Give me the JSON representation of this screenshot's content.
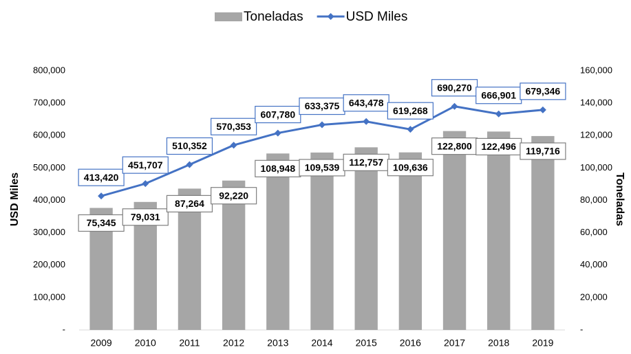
{
  "chart_data": {
    "type": "bar_line",
    "categories": [
      "2009",
      "2010",
      "2011",
      "2012",
      "2013",
      "2014",
      "2015",
      "2016",
      "2017",
      "2018",
      "2019"
    ],
    "series": [
      {
        "name": "Toneladas",
        "type": "bar",
        "axis": "y2",
        "color": "#a6a6a6",
        "values": [
          75345,
          79031,
          87264,
          92220,
          108948,
          109539,
          112757,
          109636,
          122800,
          122496,
          119716
        ],
        "value_labels": [
          "75,345",
          "79,031",
          "87,264",
          "92,220",
          "108,948",
          "109,539",
          "112,757",
          "109,636",
          "122,800",
          "122,496",
          "119,716"
        ]
      },
      {
        "name": "USD Miles",
        "type": "line",
        "axis": "y",
        "color": "#4472c4",
        "values": [
          413420,
          451707,
          510352,
          570353,
          607780,
          633375,
          643478,
          619268,
          690270,
          666901,
          679346
        ],
        "value_labels": [
          "413,420",
          "451,707",
          "510,352",
          "570,353",
          "607,780",
          "633,375",
          "643,478",
          "619,268",
          "690,270",
          "666,901",
          "679,346"
        ]
      }
    ],
    "ylabel": "USD Miles",
    "y2label": "Toneladas",
    "ylim": [
      0,
      800000
    ],
    "yticks": [
      {
        "value": 0,
        "label": "-"
      },
      {
        "value": 100000,
        "label": "100,000"
      },
      {
        "value": 200000,
        "label": "200,000"
      },
      {
        "value": 300000,
        "label": "300,000"
      },
      {
        "value": 400000,
        "label": "400,000"
      },
      {
        "value": 500000,
        "label": "500,000"
      },
      {
        "value": 600000,
        "label": "600,000"
      },
      {
        "value": 700000,
        "label": "700,000"
      },
      {
        "value": 800000,
        "label": "800,000"
      }
    ],
    "y2lim": [
      0,
      160000
    ],
    "y2ticks": [
      {
        "value": 0,
        "label": "-"
      },
      {
        "value": 20000,
        "label": "20,000"
      },
      {
        "value": 40000,
        "label": "40,000"
      },
      {
        "value": 60000,
        "label": "60,000"
      },
      {
        "value": 80000,
        "label": "80,000"
      },
      {
        "value": 100000,
        "label": "100,000"
      },
      {
        "value": 120000,
        "label": "120,000"
      },
      {
        "value": 140000,
        "label": "140,000"
      },
      {
        "value": 160000,
        "label": "160,000"
      }
    ],
    "legend": "top",
    "grid": false
  }
}
